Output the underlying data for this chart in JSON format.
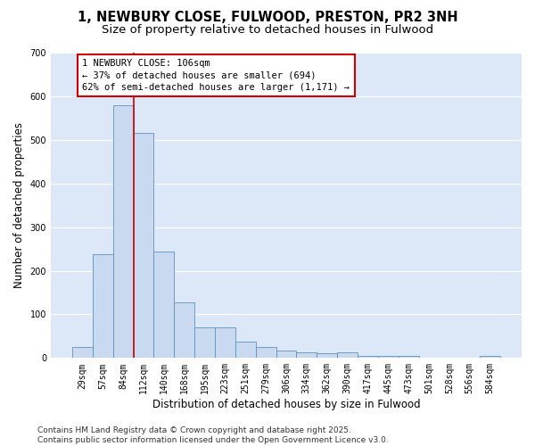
{
  "title_line1": "1, NEWBURY CLOSE, FULWOOD, PRESTON, PR2 3NH",
  "title_line2": "Size of property relative to detached houses in Fulwood",
  "xlabel": "Distribution of detached houses by size in Fulwood",
  "ylabel": "Number of detached properties",
  "categories": [
    "29sqm",
    "57sqm",
    "84sqm",
    "112sqm",
    "140sqm",
    "168sqm",
    "195sqm",
    "223sqm",
    "251sqm",
    "279sqm",
    "306sqm",
    "334sqm",
    "362sqm",
    "390sqm",
    "417sqm",
    "445sqm",
    "473sqm",
    "501sqm",
    "528sqm",
    "556sqm",
    "584sqm"
  ],
  "values": [
    25,
    237,
    580,
    515,
    243,
    128,
    70,
    70,
    38,
    25,
    18,
    13,
    10,
    12,
    5,
    5,
    5,
    0,
    0,
    0,
    5
  ],
  "bar_color": "#c9d9f0",
  "bar_edge_color": "#6090c0",
  "background_color": "#dce8f8",
  "grid_color": "#ffffff",
  "vline_color": "#cc0000",
  "annotation_text": "1 NEWBURY CLOSE: 106sqm\n← 37% of detached houses are smaller (694)\n62% of semi-detached houses are larger (1,171) →",
  "annotation_box_color": "#ffffff",
  "annotation_box_edge_color": "#cc0000",
  "ylim": [
    0,
    700
  ],
  "yticks": [
    0,
    100,
    200,
    300,
    400,
    500,
    600,
    700
  ],
  "footer_line1": "Contains HM Land Registry data © Crown copyright and database right 2025.",
  "footer_line2": "Contains public sector information licensed under the Open Government Licence v3.0.",
  "title_fontsize": 10.5,
  "subtitle_fontsize": 9.5,
  "axis_label_fontsize": 8.5,
  "tick_fontsize": 7,
  "annotation_fontsize": 7.5,
  "footer_fontsize": 6.5
}
